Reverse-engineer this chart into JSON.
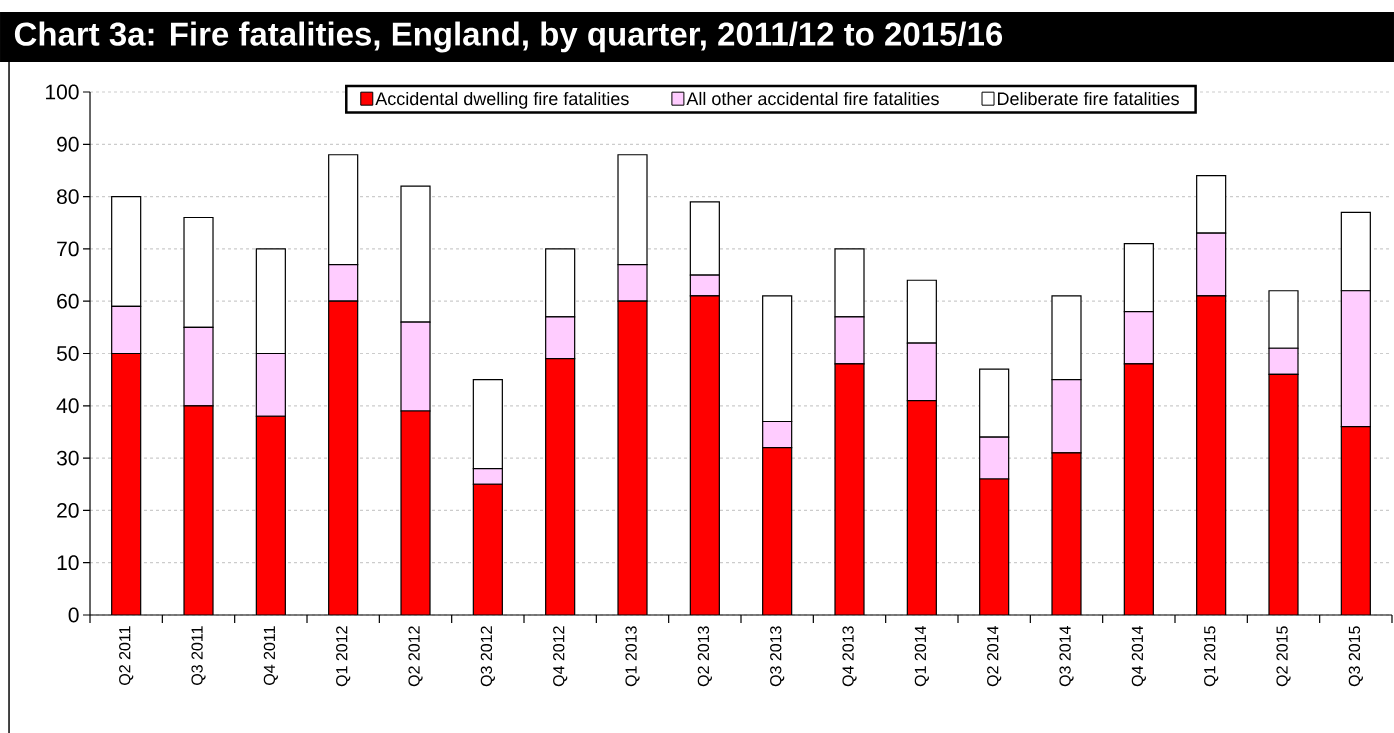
{
  "chart_data": {
    "type": "bar",
    "stacked": true,
    "title": "Chart 3a: Fire fatalities, England, by quarter, 2011/12 to 2015/16",
    "categories": [
      "Q2 2011",
      "Q3 2011",
      "Q4 2011",
      "Q1 2012",
      "Q2 2012",
      "Q3 2012",
      "Q4 2012",
      "Q1 2013",
      "Q2 2013",
      "Q3 2013",
      "Q4 2013",
      "Q1 2014",
      "Q2 2014",
      "Q3 2014",
      "Q4 2014",
      "Q1 2015",
      "Q2 2015",
      "Q3 2015"
    ],
    "series": [
      {
        "name": "Accidental dwelling fire fatalities",
        "color": "#ff0000",
        "values": [
          50,
          40,
          38,
          60,
          39,
          25,
          49,
          60,
          61,
          32,
          48,
          41,
          26,
          31,
          48,
          61,
          46,
          36
        ]
      },
      {
        "name": "All other accidental fire fatalities",
        "color": "#ffccff",
        "values": [
          9,
          15,
          12,
          7,
          17,
          3,
          8,
          7,
          4,
          5,
          9,
          11,
          8,
          14,
          10,
          12,
          5,
          26
        ]
      },
      {
        "name": "Deliberate fire fatalities",
        "color": "#ffffff",
        "values": [
          21,
          21,
          20,
          21,
          26,
          17,
          13,
          21,
          14,
          24,
          13,
          12,
          13,
          16,
          13,
          11,
          11,
          15
        ]
      }
    ],
    "ylim": [
      0,
      100
    ],
    "yticks": [
      0,
      10,
      20,
      30,
      40,
      50,
      60,
      70,
      80,
      90,
      100
    ],
    "grid": "y",
    "legend": "top"
  }
}
